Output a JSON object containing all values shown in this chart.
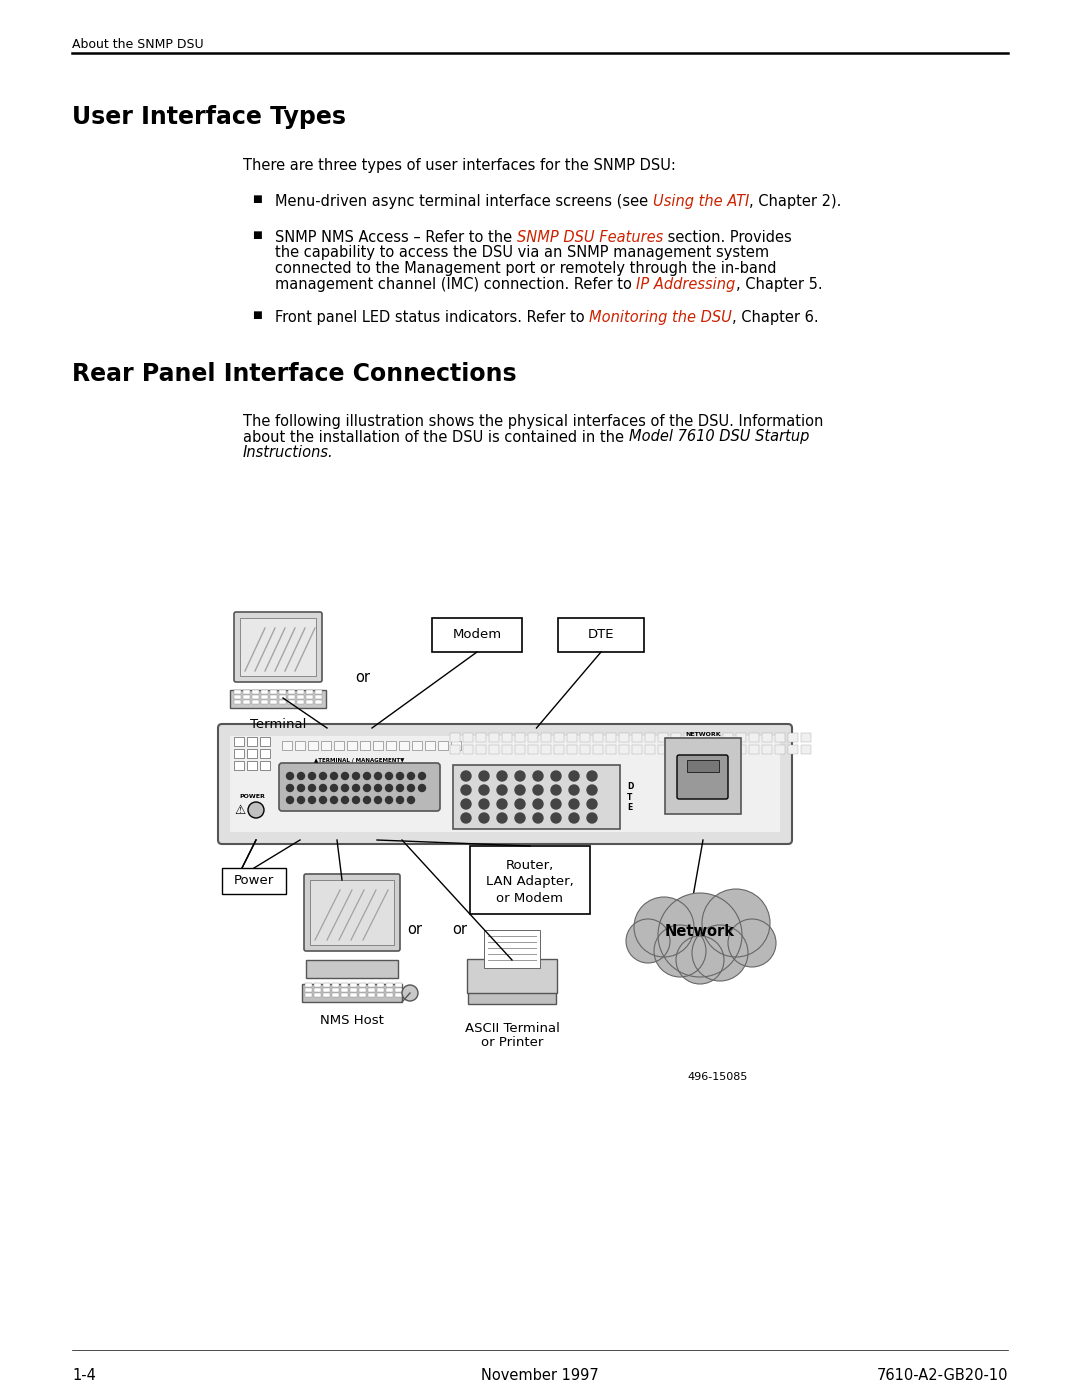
{
  "bg_color": "#ffffff",
  "header_text": "About the SNMP DSU",
  "section1_title": "User Interface Types",
  "intro_text": "There are three types of user interfaces for the SNMP DSU:",
  "bullet1_n1": "Menu-driven async terminal interface screens (see ",
  "bullet1_link": "Using the ATI",
  "bullet1_e1": ", Chapter 2).",
  "bullet2_n1": "SNMP NMS Access – Refer to the ",
  "bullet2_link1": "SNMP DSU Features",
  "bullet2_n2": " section. Provides",
  "bullet2_n3": "the capability to access the DSU via an SNMP management system",
  "bullet2_n4": "connected to the Management port or remotely through the in-band",
  "bullet2_n5": "management channel (IMC) connection. Refer to ",
  "bullet2_link2": "IP Addressing",
  "bullet2_e2": ", Chapter 5.",
  "bullet3_n1": "Front panel LED status indicators. Refer to ",
  "bullet3_link": "Monitoring the DSU",
  "bullet3_e1": ", Chapter 6.",
  "section2_title": "Rear Panel Interface Connections",
  "s2_intro1": "The following illustration shows the physical interfaces of the DSU. Information",
  "s2_intro2": "about the installation of the DSU is contained in the ",
  "s2_intro2_italic": "Model 7610 DSU Startup",
  "s2_intro3": "Instructions.",
  "footer_left": "1-4",
  "footer_center": "November 1997",
  "footer_right": "7610-A2-GB20-10",
  "link_color": "#cc2200",
  "text_color": "#000000",
  "title_font_size": 17,
  "body_font_size": 10.5,
  "header_font_size": 9,
  "diag_ref": "496-15085"
}
